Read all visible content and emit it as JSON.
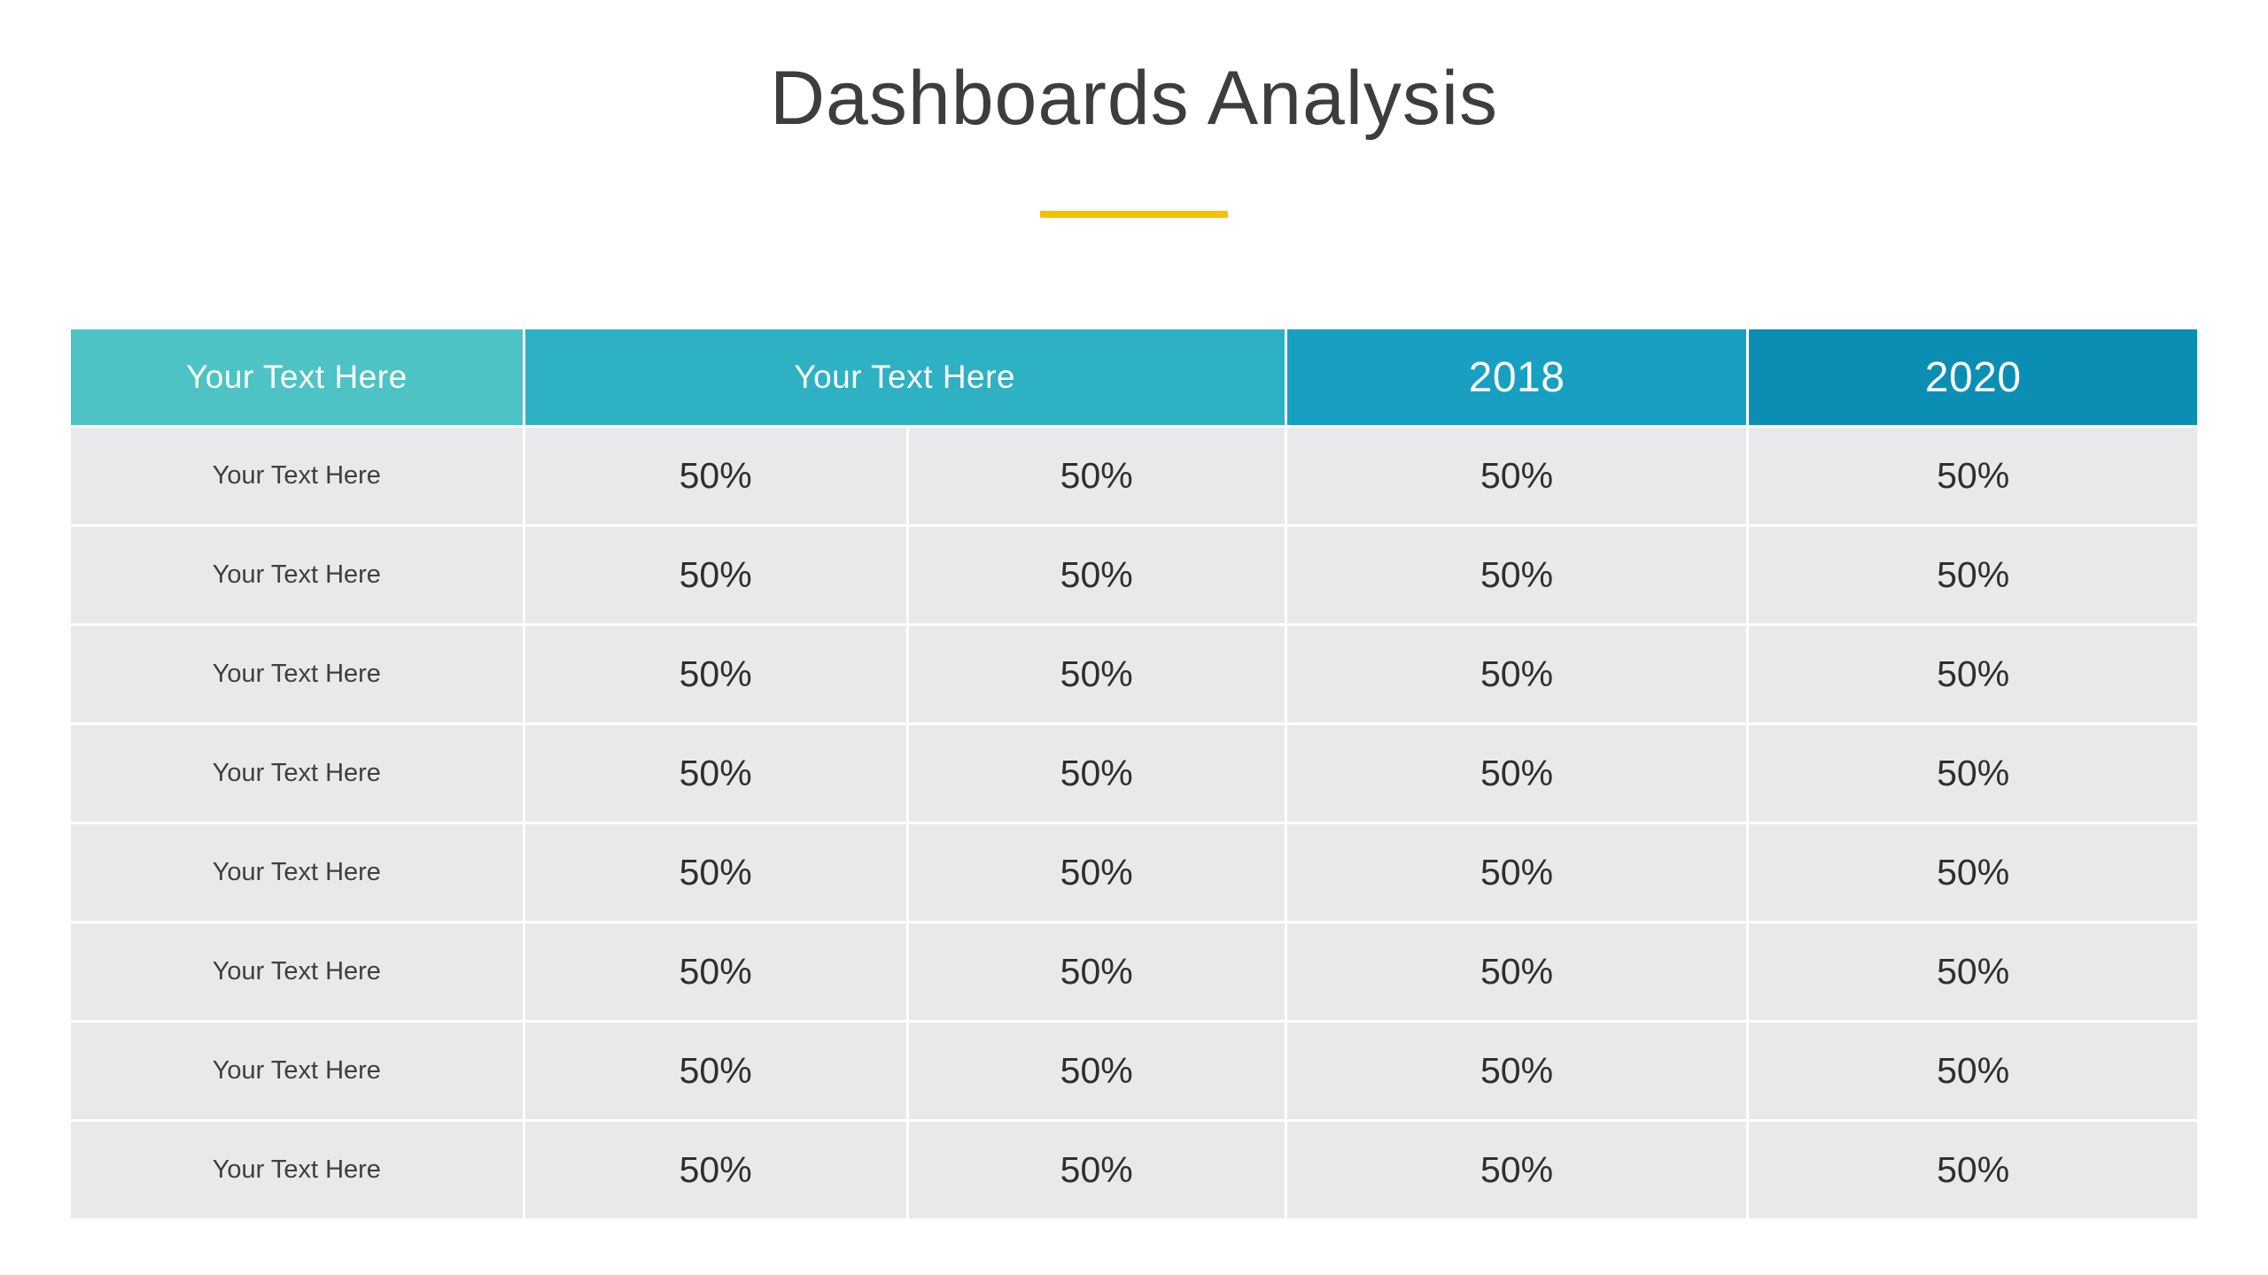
{
  "slide": {
    "title": "Dashboards Analysis",
    "accent_color": "#F2C100"
  },
  "table": {
    "row_background": "#E9E9EB",
    "headers": [
      {
        "label": "Your Text Here",
        "color": "#4DC3C6"
      },
      {
        "label": "Your Text Here",
        "color": "#2FB1C4"
      },
      {
        "label": "2018",
        "color": "#17A0C1"
      },
      {
        "label": "2020",
        "color": "#0B8EB4"
      }
    ],
    "rows": [
      {
        "label": "Your Text Here",
        "values": [
          "50%",
          "50%",
          "50%",
          "50%"
        ]
      },
      {
        "label": "Your Text Here",
        "values": [
          "50%",
          "50%",
          "50%",
          "50%"
        ]
      },
      {
        "label": "Your Text Here",
        "values": [
          "50%",
          "50%",
          "50%",
          "50%"
        ]
      },
      {
        "label": "Your Text Here",
        "values": [
          "50%",
          "50%",
          "50%",
          "50%"
        ]
      },
      {
        "label": "Your Text Here",
        "values": [
          "50%",
          "50%",
          "50%",
          "50%"
        ]
      },
      {
        "label": "Your Text Here",
        "values": [
          "50%",
          "50%",
          "50%",
          "50%"
        ]
      },
      {
        "label": "Your Text Here",
        "values": [
          "50%",
          "50%",
          "50%",
          "50%"
        ]
      },
      {
        "label": "Your Text Here",
        "values": [
          "50%",
          "50%",
          "50%",
          "50%"
        ]
      }
    ]
  }
}
